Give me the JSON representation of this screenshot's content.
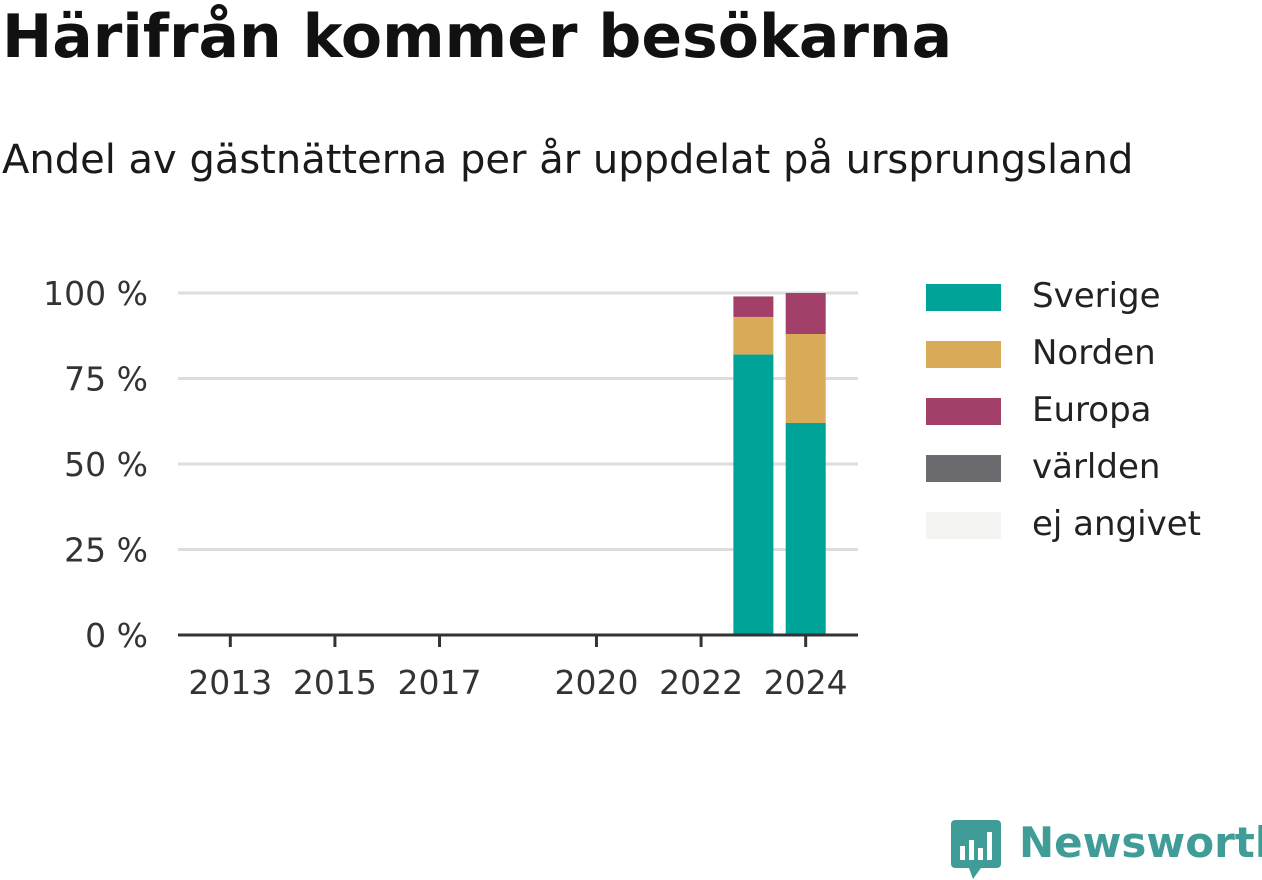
{
  "title": "Härifrån kommer besökarna",
  "subtitle": "Andel av gästnätterna per år uppdelat på ursprungsland",
  "brand": {
    "name": "Newsworthy",
    "icon": "newsworthy-logo-icon"
  },
  "chart_data": {
    "type": "bar",
    "stacked": true,
    "title": "Härifrån kommer besökarna",
    "subtitle": "Andel av gästnätterna per år uppdelat på ursprungsland",
    "xlabel": "",
    "ylabel": "",
    "x_ticks": [
      "2013",
      "2015",
      "2017",
      "2020",
      "2022",
      "2024"
    ],
    "xlim": [
      2012,
      2025
    ],
    "ylim": [
      0,
      100
    ],
    "y_ticks": [
      "0 %",
      "25 %",
      "50 %",
      "75 %",
      "100 %"
    ],
    "y_tick_values": [
      0,
      25,
      50,
      75,
      100
    ],
    "grid": true,
    "legend_position": "right",
    "categories": [
      "2023",
      "2024"
    ],
    "series": [
      {
        "name": "Sverige",
        "color": "#00a398",
        "values": [
          82,
          62
        ]
      },
      {
        "name": "Norden",
        "color": "#d9ab59",
        "values": [
          11,
          26
        ]
      },
      {
        "name": "Europa",
        "color": "#a3406a",
        "values": [
          6,
          12
        ]
      },
      {
        "name": "världen",
        "color": "#6c6b70",
        "values": [
          0,
          0
        ]
      },
      {
        "name": "ej angivet",
        "color": "#f4f4f2",
        "values": [
          0,
          0
        ]
      }
    ]
  }
}
